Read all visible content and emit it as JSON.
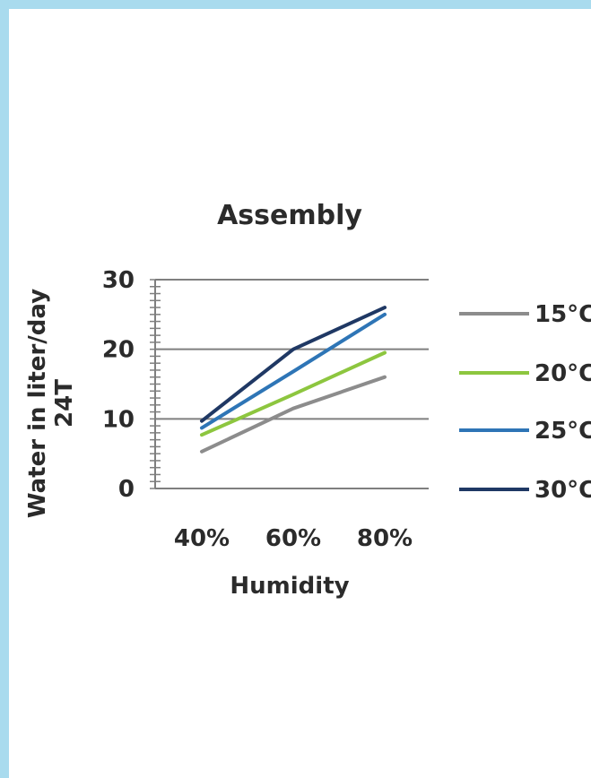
{
  "colors": {
    "window_border": "#a9dbee",
    "background": "#ffffff",
    "text": "#2b2b2b",
    "grid": "#7f7f7f",
    "series_15": "#8c8c8c",
    "series_20": "#8dc63f",
    "series_25": "#2e75b6",
    "series_30": "#1f3864"
  },
  "chart_data": {
    "type": "line",
    "title": "Assembly",
    "xlabel": "Humidity",
    "ylabel": [
      "Water in liter/day",
      "24T"
    ],
    "categories": [
      "40%",
      "60%",
      "80%"
    ],
    "ylim": [
      0,
      30
    ],
    "yticks": [
      "0",
      "10",
      "20",
      "30"
    ],
    "grid": "horizontal major lines at 10, 20, 30",
    "legend_placement": "right",
    "series": [
      {
        "name": "15°C",
        "color": "#8c8c8c",
        "values": [
          5.3,
          11.5,
          16.0
        ]
      },
      {
        "name": "20°C",
        "color": "#8dc63f",
        "values": [
          7.7,
          13.5,
          19.5
        ]
      },
      {
        "name": "25°C",
        "color": "#2e75b6",
        "values": [
          8.7,
          16.8,
          25.0
        ]
      },
      {
        "name": "30°C",
        "color": "#1f3864",
        "values": [
          9.7,
          20.0,
          26.0
        ]
      }
    ]
  }
}
